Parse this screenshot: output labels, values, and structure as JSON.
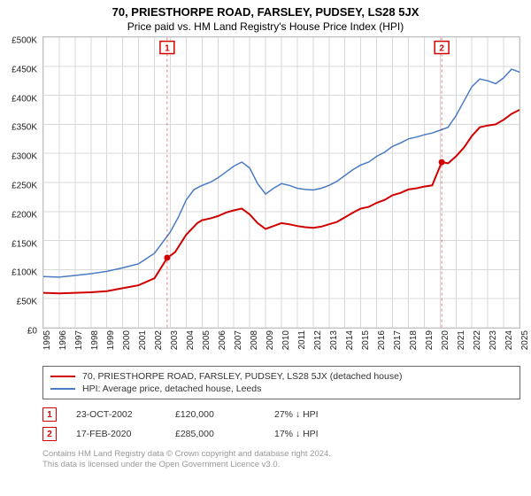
{
  "title": "70, PRIESTHORPE ROAD, FARSLEY, PUDSEY, LS28 5JX",
  "subtitle": "Price paid vs. HM Land Registry's House Price Index (HPI)",
  "chart": {
    "type": "line",
    "background_color": "#ffffff",
    "grid_color": "#d8d8d8",
    "border_color": "#bfbfbf",
    "y_axis": {
      "min": 0,
      "max": 500000,
      "tick_step": 50000,
      "labels": [
        "£0",
        "£50K",
        "£100K",
        "£150K",
        "£200K",
        "£250K",
        "£300K",
        "£350K",
        "£400K",
        "£450K",
        "£500K"
      ],
      "label_fontsize": 10
    },
    "x_axis": {
      "min": 1995,
      "max": 2025,
      "tick_step": 1,
      "labels": [
        "1995",
        "1996",
        "1997",
        "1998",
        "1999",
        "2000",
        "2001",
        "2002",
        "2003",
        "2004",
        "2005",
        "2006",
        "2007",
        "2008",
        "2009",
        "2010",
        "2011",
        "2012",
        "2013",
        "2014",
        "2015",
        "2016",
        "2017",
        "2018",
        "2019",
        "2020",
        "2021",
        "2022",
        "2023",
        "2024",
        "2025"
      ],
      "label_fontsize": 10,
      "rotation": -90
    },
    "series": [
      {
        "name": "70, PRIESTHORPE ROAD, FARSLEY, PUDSEY, LS28 5JX (detached house)",
        "color": "#d10000",
        "line_width": 2,
        "data": [
          [
            1995,
            60000
          ],
          [
            1996,
            59000
          ],
          [
            1997,
            60000
          ],
          [
            1998,
            61000
          ],
          [
            1999,
            63000
          ],
          [
            2000,
            68000
          ],
          [
            2001,
            73000
          ],
          [
            2002,
            85000
          ],
          [
            2002.8,
            120000
          ],
          [
            2003.3,
            130000
          ],
          [
            2004,
            160000
          ],
          [
            2004.7,
            180000
          ],
          [
            2005,
            185000
          ],
          [
            2005.5,
            188000
          ],
          [
            2006,
            192000
          ],
          [
            2006.5,
            198000
          ],
          [
            2007,
            202000
          ],
          [
            2007.5,
            205000
          ],
          [
            2008,
            195000
          ],
          [
            2008.5,
            180000
          ],
          [
            2009,
            170000
          ],
          [
            2009.5,
            175000
          ],
          [
            2010,
            180000
          ],
          [
            2010.5,
            178000
          ],
          [
            2011,
            175000
          ],
          [
            2011.5,
            173000
          ],
          [
            2012,
            172000
          ],
          [
            2012.5,
            174000
          ],
          [
            2013,
            178000
          ],
          [
            2013.5,
            182000
          ],
          [
            2014,
            190000
          ],
          [
            2014.5,
            198000
          ],
          [
            2015,
            205000
          ],
          [
            2015.5,
            208000
          ],
          [
            2016,
            215000
          ],
          [
            2016.5,
            220000
          ],
          [
            2017,
            228000
          ],
          [
            2017.5,
            232000
          ],
          [
            2018,
            238000
          ],
          [
            2018.5,
            240000
          ],
          [
            2019,
            243000
          ],
          [
            2019.5,
            245000
          ],
          [
            2020.1,
            285000
          ],
          [
            2020.5,
            283000
          ],
          [
            2021,
            295000
          ],
          [
            2021.5,
            310000
          ],
          [
            2022,
            330000
          ],
          [
            2022.5,
            345000
          ],
          [
            2023,
            348000
          ],
          [
            2023.5,
            350000
          ],
          [
            2024,
            358000
          ],
          [
            2024.5,
            368000
          ],
          [
            2025,
            375000
          ]
        ]
      },
      {
        "name": "HPI: Average price, detached house, Leeds",
        "color": "#4a7bc4",
        "line_width": 1.5,
        "data": [
          [
            1995,
            88000
          ],
          [
            1996,
            87000
          ],
          [
            1997,
            90000
          ],
          [
            1998,
            93000
          ],
          [
            1999,
            97000
          ],
          [
            2000,
            103000
          ],
          [
            2001,
            110000
          ],
          [
            2002,
            128000
          ],
          [
            2003,
            165000
          ],
          [
            2003.5,
            190000
          ],
          [
            2004,
            220000
          ],
          [
            2004.5,
            238000
          ],
          [
            2005,
            245000
          ],
          [
            2005.5,
            250000
          ],
          [
            2006,
            258000
          ],
          [
            2006.5,
            268000
          ],
          [
            2007,
            278000
          ],
          [
            2007.5,
            285000
          ],
          [
            2008,
            275000
          ],
          [
            2008.5,
            248000
          ],
          [
            2009,
            230000
          ],
          [
            2009.5,
            240000
          ],
          [
            2010,
            248000
          ],
          [
            2010.5,
            245000
          ],
          [
            2011,
            240000
          ],
          [
            2011.5,
            238000
          ],
          [
            2012,
            237000
          ],
          [
            2012.5,
            240000
          ],
          [
            2013,
            245000
          ],
          [
            2013.5,
            252000
          ],
          [
            2014,
            262000
          ],
          [
            2014.5,
            272000
          ],
          [
            2015,
            280000
          ],
          [
            2015.5,
            285000
          ],
          [
            2016,
            295000
          ],
          [
            2016.5,
            302000
          ],
          [
            2017,
            312000
          ],
          [
            2017.5,
            318000
          ],
          [
            2018,
            325000
          ],
          [
            2018.5,
            328000
          ],
          [
            2019,
            332000
          ],
          [
            2019.5,
            335000
          ],
          [
            2020,
            340000
          ],
          [
            2020.5,
            345000
          ],
          [
            2021,
            365000
          ],
          [
            2021.5,
            390000
          ],
          [
            2022,
            415000
          ],
          [
            2022.5,
            428000
          ],
          [
            2023,
            425000
          ],
          [
            2023.5,
            420000
          ],
          [
            2024,
            430000
          ],
          [
            2024.5,
            445000
          ],
          [
            2025,
            440000
          ]
        ]
      }
    ],
    "sale_points": [
      {
        "x": 2002.8,
        "y": 120000,
        "label": "1"
      },
      {
        "x": 2020.1,
        "y": 285000,
        "label": "2"
      }
    ]
  },
  "legend": {
    "items": [
      {
        "color": "#d10000",
        "label": "70, PRIESTHORPE ROAD, FARSLEY, PUDSEY, LS28 5JX (detached house)",
        "line_width": 2
      },
      {
        "color": "#4a7bc4",
        "label": "HPI: Average price, detached house, Leeds",
        "line_width": 1.5
      }
    ]
  },
  "markers": [
    {
      "num": "1",
      "date": "23-OCT-2002",
      "price": "£120,000",
      "pct": "27%",
      "arrow": "↓",
      "suffix": "HPI"
    },
    {
      "num": "2",
      "date": "17-FEB-2020",
      "price": "£285,000",
      "pct": "17%",
      "arrow": "↓",
      "suffix": "HPI"
    }
  ],
  "attribution": {
    "line1": "Contains HM Land Registry data © Crown copyright and database right 2024.",
    "line2": "This data is licensed under the Open Government Licence v3.0."
  }
}
